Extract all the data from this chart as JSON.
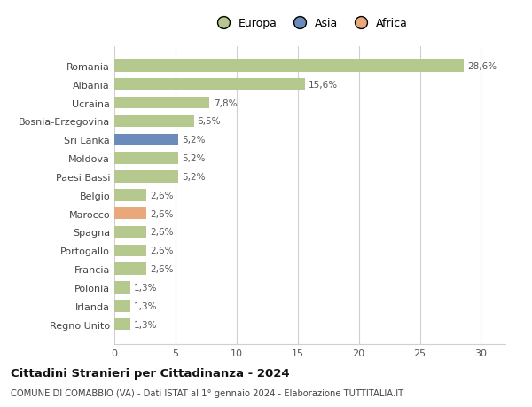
{
  "categories": [
    "Romania",
    "Albania",
    "Ucraina",
    "Bosnia-Erzegovina",
    "Sri Lanka",
    "Moldova",
    "Paesi Bassi",
    "Belgio",
    "Marocco",
    "Spagna",
    "Portogallo",
    "Francia",
    "Polonia",
    "Irlanda",
    "Regno Unito"
  ],
  "values": [
    28.6,
    15.6,
    7.8,
    6.5,
    5.2,
    5.2,
    5.2,
    2.6,
    2.6,
    2.6,
    2.6,
    2.6,
    1.3,
    1.3,
    1.3
  ],
  "labels": [
    "28,6%",
    "15,6%",
    "7,8%",
    "6,5%",
    "5,2%",
    "5,2%",
    "5,2%",
    "2,6%",
    "2,6%",
    "2,6%",
    "2,6%",
    "2,6%",
    "1,3%",
    "1,3%",
    "1,3%"
  ],
  "colors": [
    "#b5c98e",
    "#b5c98e",
    "#b5c98e",
    "#b5c98e",
    "#6b8cba",
    "#b5c98e",
    "#b5c98e",
    "#b5c98e",
    "#e8a87c",
    "#b5c98e",
    "#b5c98e",
    "#b5c98e",
    "#b5c98e",
    "#b5c98e",
    "#b5c98e"
  ],
  "legend_labels": [
    "Europa",
    "Asia",
    "Africa"
  ],
  "legend_colors": [
    "#b5c98e",
    "#6b8cba",
    "#e8a87c"
  ],
  "title": "Cittadini Stranieri per Cittadinanza - 2024",
  "subtitle": "COMUNE DI COMABBIO (VA) - Dati ISTAT al 1° gennaio 2024 - Elaborazione TUTTITALIA.IT",
  "xlim": [
    0,
    32
  ],
  "xticks": [
    0,
    5,
    10,
    15,
    20,
    25,
    30
  ],
  "background_color": "#ffffff",
  "grid_color": "#d0d0d0",
  "bar_height": 0.65
}
